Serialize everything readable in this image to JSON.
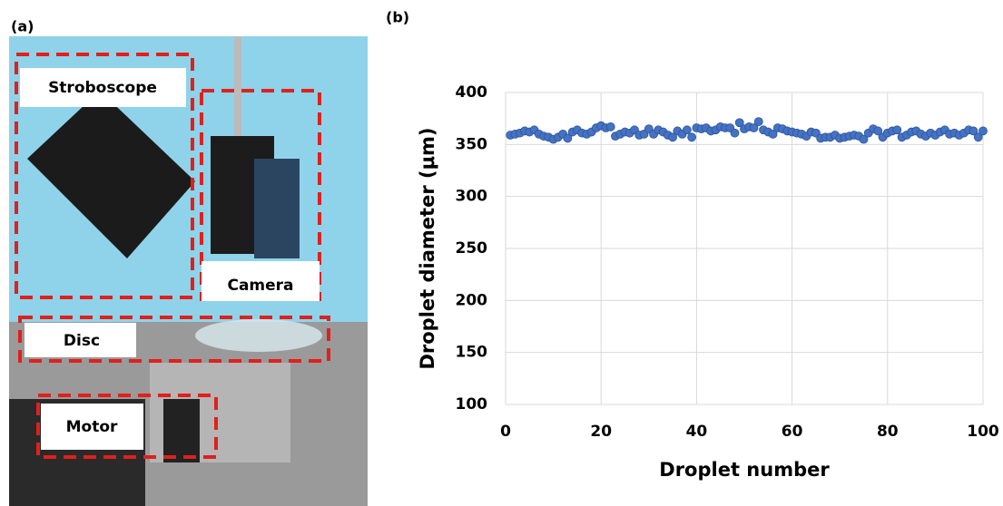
{
  "figure": {
    "panel_a": "(a)",
    "photo_labels": [
      "Stroboscope",
      "Camera",
      "Disc",
      "Motor"
    ]
  },
  "chart_data": {
    "type": "scatter",
    "panel_label": "(b)",
    "x_label": "Droplet number",
    "y_label": "Droplet diameter (μm)",
    "xlim": [
      0,
      100
    ],
    "xticks": [
      0,
      20,
      40,
      60,
      80,
      100
    ],
    "ylim": [
      100,
      400
    ],
    "yticks": [
      100,
      150,
      200,
      250,
      300,
      350,
      400
    ],
    "grid": true,
    "color": "#4472c4",
    "x": [
      1,
      2,
      3,
      4,
      5,
      6,
      7,
      8,
      9,
      10,
      11,
      12,
      13,
      14,
      15,
      16,
      17,
      18,
      19,
      20,
      21,
      22,
      23,
      24,
      25,
      26,
      27,
      28,
      29,
      30,
      31,
      32,
      33,
      34,
      35,
      36,
      37,
      38,
      39,
      40,
      41,
      42,
      43,
      44,
      45,
      46,
      47,
      48,
      49,
      50,
      51,
      52,
      53,
      54,
      55,
      56,
      57,
      58,
      59,
      60,
      61,
      62,
      63,
      64,
      65,
      66,
      67,
      68,
      69,
      70,
      71,
      72,
      73,
      74,
      75,
      76,
      77,
      78,
      79,
      80,
      81,
      82,
      83,
      84,
      85,
      86,
      87,
      88,
      89,
      90,
      91,
      92,
      93,
      94,
      95,
      96,
      97,
      98,
      99,
      100
    ],
    "values": [
      359,
      360,
      361,
      363,
      362,
      364,
      360,
      358,
      357,
      355,
      357,
      360,
      356,
      362,
      364,
      361,
      360,
      362,
      366,
      368,
      366,
      367,
      358,
      360,
      362,
      361,
      364,
      359,
      360,
      365,
      360,
      364,
      362,
      359,
      357,
      363,
      360,
      364,
      357,
      366,
      365,
      366,
      363,
      364,
      367,
      366,
      366,
      361,
      371,
      365,
      367,
      366,
      372,
      364,
      362,
      360,
      366,
      365,
      363,
      362,
      361,
      360,
      358,
      362,
      361,
      356,
      357,
      357,
      359,
      356,
      357,
      358,
      359,
      358,
      355,
      361,
      365,
      363,
      357,
      361,
      363,
      364,
      357,
      359,
      362,
      363,
      360,
      358,
      361,
      359,
      362,
      364,
      360,
      361,
      359,
      361,
      364,
      363,
      357,
      363
    ]
  }
}
